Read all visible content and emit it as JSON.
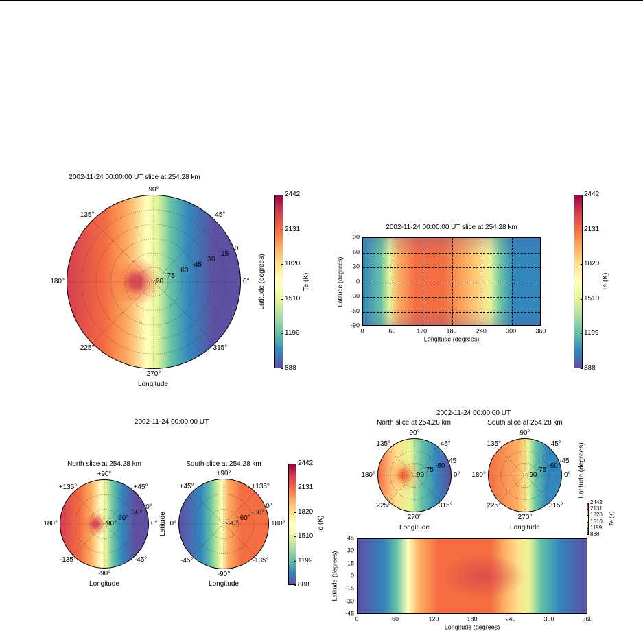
{
  "colormap": [
    "#5e4fa2",
    "#3288bd",
    "#66c2a5",
    "#abdda4",
    "#e6f598",
    "#ffffbf",
    "#fee08b",
    "#fdae61",
    "#f46d43",
    "#d53e4f",
    "#9e0142"
  ],
  "chart_data": [
    {
      "type": "heatmap",
      "projection": "polar",
      "title": "2002-11-24 00:00:00 UT slice at 254.28 km",
      "angle_labels": [
        "0°",
        "45°",
        "90°",
        "135°",
        "180°",
        "225°",
        "270°",
        "315°"
      ],
      "radial_labels": [
        "90",
        "75",
        "60",
        "45",
        "30",
        "15",
        "0"
      ],
      "radial_range": [
        90,
        0
      ],
      "xlabel": "Longitude",
      "ylabel": "Latitude (degrees)",
      "colorbar": {
        "label": "Te (K)",
        "ticks": [
          "2442",
          "2131",
          "1820",
          "1510",
          "1199",
          "888"
        ],
        "range": [
          888,
          2442
        ]
      }
    },
    {
      "type": "heatmap",
      "projection": "cylindrical",
      "title": "2002-11-24 00:00:00 UT slice at 254.28 km",
      "xticks": [
        "0",
        "60",
        "120",
        "180",
        "240",
        "300",
        "360"
      ],
      "yticks": [
        "90",
        "60",
        "30",
        "0",
        "-30",
        "-60",
        "-90"
      ],
      "xlim": [
        0,
        360
      ],
      "ylim": [
        -90,
        90
      ],
      "xlabel": "Longitude (degrees)",
      "ylabel": "Latitude (degrees)",
      "colorbar": {
        "label": "Te (K)",
        "ticks": [
          "2442",
          "2131",
          "1820",
          "1510",
          "1199",
          "888"
        ],
        "range": [
          888,
          2442
        ]
      }
    },
    {
      "type": "heatmap",
      "projection": "polar-pair",
      "title": "2002-11-24 00:00:00 UT",
      "panels": [
        {
          "title": "North slice at 254.28 km",
          "angle_labels": [
            "0°",
            "+45°",
            "+90°",
            "+135°",
            "180°",
            "-135°",
            "-90°",
            "-45°"
          ],
          "radial_labels": [
            "90°",
            "60°",
            "30°",
            "0°"
          ],
          "xlabel": "Longitude"
        },
        {
          "title": "South slice at 254.28 km",
          "angle_labels": [
            "180°",
            "+135°",
            "+90°",
            "+45°",
            "0°",
            "-45°",
            "-90°",
            "-135°"
          ],
          "radial_labels": [
            "-90°",
            "-60°",
            "-30°",
            "0°"
          ],
          "xlabel": "Longitude",
          "ylabel": "Latitude"
        }
      ],
      "colorbar": {
        "label": "Te (K)",
        "ticks": [
          "2442",
          "2131",
          "1820",
          "1510",
          "1199",
          "888"
        ],
        "range": [
          888,
          2442
        ]
      }
    },
    {
      "type": "heatmap",
      "projection": "polar-pair-and-map",
      "title": "2002-11-24 00:00:00 UT",
      "panels": [
        {
          "title": "North slice at 254.28 km",
          "angle_labels": [
            "0°",
            "45°",
            "90°",
            "135°",
            "180°",
            "225°",
            "270°",
            "315°"
          ],
          "radial_labels": [
            "90",
            "75",
            "60",
            "45"
          ],
          "xlabel": "Longitude"
        },
        {
          "title": "South slice at 254.28 km",
          "angle_labels": [
            "0°",
            "45°",
            "90°",
            "135°",
            "180°",
            "225°",
            "270°",
            "315°"
          ],
          "radial_labels": [
            "-90",
            "-75",
            "-60",
            "-45"
          ],
          "xlabel": "Longitude"
        }
      ],
      "ylabel": "Latitude (degrees)",
      "map": {
        "xticks": [
          "0",
          "60",
          "120",
          "180",
          "240",
          "300",
          "360"
        ],
        "yticks": [
          "45",
          "30",
          "15",
          "0",
          "-15",
          "-30",
          "-45"
        ],
        "xlim": [
          0,
          360
        ],
        "ylim": [
          -45,
          45
        ],
        "xlabel": "Longitude (degrees)",
        "ylabel": "Latitude (degrees)"
      },
      "colorbar": {
        "label": "Te (K)",
        "ticks": [
          "2442",
          "2131",
          "1820",
          "1510",
          "1199",
          "888"
        ],
        "range": [
          888,
          2442
        ]
      }
    }
  ]
}
